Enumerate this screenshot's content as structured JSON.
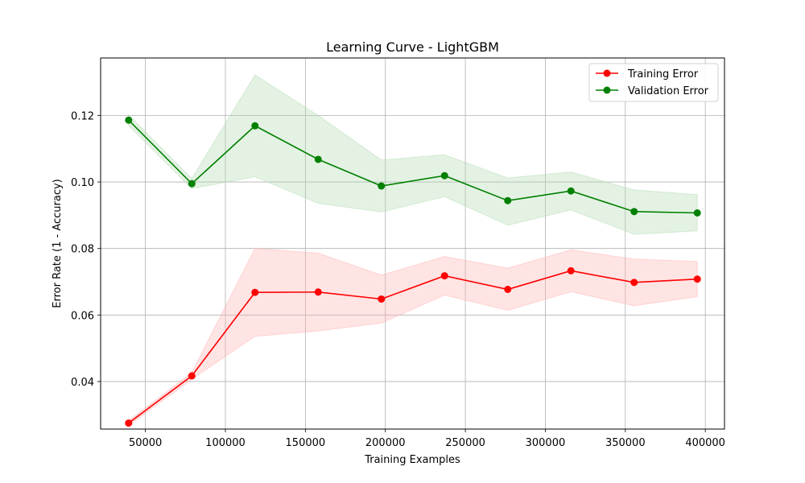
{
  "chart_data": {
    "type": "line",
    "title": "Learning Curve - LightGBM",
    "xlabel": "Training Examples",
    "ylabel": "Error Rate (1 - Accuracy)",
    "xlim": [
      22000,
      412000
    ],
    "ylim": [
      0.0257,
      0.1373
    ],
    "x_ticks": [
      50000,
      100000,
      150000,
      200000,
      250000,
      300000,
      350000,
      400000
    ],
    "x_tick_labels": [
      "50000",
      "100000",
      "150000",
      "200000",
      "250000",
      "300000",
      "350000",
      "400000"
    ],
    "y_ticks": [
      0.04,
      0.06,
      0.08,
      0.1,
      0.12
    ],
    "y_tick_labels": [
      "0.04",
      "0.06",
      "0.08",
      "0.10",
      "0.12"
    ],
    "grid": true,
    "legend_position": "top-right",
    "x": [
      39500,
      79000,
      118500,
      158000,
      197500,
      237000,
      276500,
      316000,
      355500,
      395000
    ],
    "series": [
      {
        "name": "Training Error",
        "color": "#ff0000",
        "band_color": "#ffb3b3",
        "values": [
          0.0275,
          0.0417,
          0.0668,
          0.0669,
          0.0648,
          0.0718,
          0.0677,
          0.0733,
          0.0698,
          0.0708
        ],
        "lower": [
          0.0268,
          0.0407,
          0.0536,
          0.0552,
          0.0576,
          0.066,
          0.0614,
          0.067,
          0.0628,
          0.0655
        ],
        "upper": [
          0.0282,
          0.0427,
          0.08,
          0.0786,
          0.072,
          0.0776,
          0.0741,
          0.0796,
          0.0768,
          0.0761
        ]
      },
      {
        "name": "Validation Error",
        "color": "#008000",
        "band_color": "#b3dbb3",
        "values": [
          0.1186,
          0.0995,
          0.1169,
          0.1068,
          0.0988,
          0.1019,
          0.0944,
          0.0973,
          0.0911,
          0.0907
        ],
        "lower": [
          0.117,
          0.098,
          0.1016,
          0.0936,
          0.091,
          0.0956,
          0.087,
          0.0916,
          0.0843,
          0.0853
        ],
        "upper": [
          0.1202,
          0.101,
          0.1322,
          0.12,
          0.1066,
          0.1082,
          0.1012,
          0.103,
          0.0976,
          0.0962
        ]
      }
    ]
  }
}
